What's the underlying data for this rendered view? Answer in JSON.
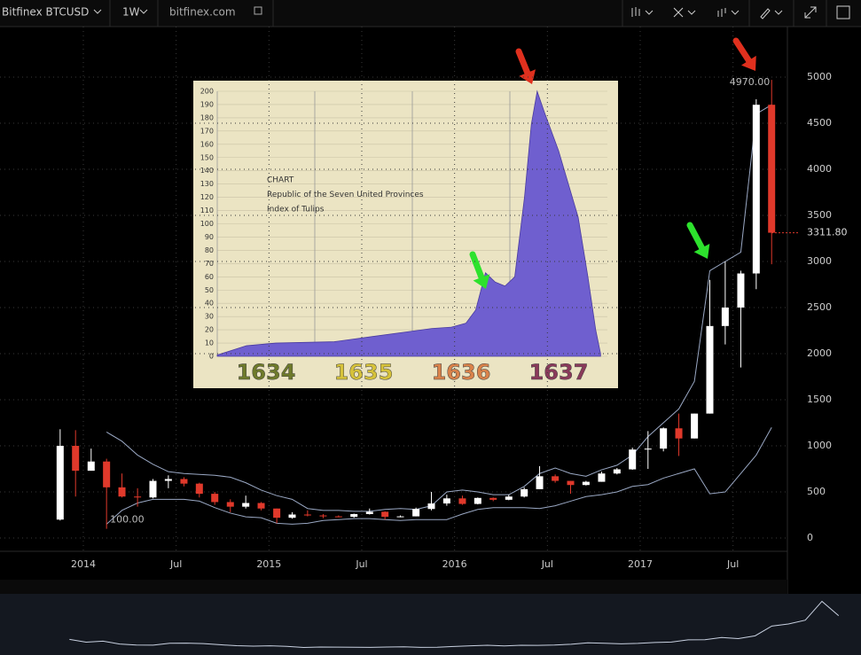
{
  "toolbar": {
    "symbol": "Bitfinex BTCUSD",
    "interval": "1W",
    "site": "bitfinex.com"
  },
  "chart_data": [
    {
      "type": "candlestick",
      "x": [
        2013.875,
        2013.958,
        2014.042,
        2014.125,
        2014.208,
        2014.292,
        2014.375,
        2014.458,
        2014.542,
        2014.625,
        2014.708,
        2014.792,
        2014.875,
        2014.958,
        2015.042,
        2015.125,
        2015.208,
        2015.292,
        2015.375,
        2015.458,
        2015.542,
        2015.625,
        2015.708,
        2015.792,
        2015.875,
        2015.958,
        2016.042,
        2016.125,
        2016.208,
        2016.292,
        2016.375,
        2016.458,
        2016.542,
        2016.625,
        2016.708,
        2016.792,
        2016.875,
        2016.958,
        2017.042,
        2017.125,
        2017.208,
        2017.292,
        2017.375,
        2017.458,
        2017.542,
        2017.625,
        2017.708
      ],
      "open": [
        200,
        1000,
        730,
        830,
        550,
        450,
        440,
        620,
        640,
        590,
        480,
        390,
        340,
        380,
        320,
        220,
        255,
        245,
        235,
        230,
        260,
        285,
        230,
        235,
        315,
        375,
        430,
        370,
        435,
        415,
        450,
        530,
        670,
        620,
        575,
        610,
        700,
        745,
        960,
        970,
        1190,
        1080,
        1350,
        2300,
        2500,
        2870,
        4700
      ],
      "high": [
        1180,
        1170,
        970,
        860,
        700,
        540,
        640,
        680,
        660,
        600,
        500,
        420,
        460,
        390,
        320,
        280,
        300,
        260,
        245,
        265,
        320,
        290,
        245,
        330,
        500,
        470,
        460,
        440,
        440,
        470,
        550,
        780,
        690,
        620,
        620,
        720,
        760,
        980,
        1160,
        1200,
        1350,
        1350,
        2800,
        3000,
        2900,
        4760,
        4970
      ],
      "low": [
        190,
        450,
        730,
        100,
        440,
        340,
        430,
        540,
        560,
        440,
        360,
        280,
        320,
        300,
        160,
        210,
        235,
        215,
        225,
        220,
        255,
        200,
        225,
        235,
        300,
        350,
        360,
        365,
        400,
        410,
        440,
        530,
        600,
        480,
        570,
        610,
        690,
        740,
        750,
        940,
        890,
        1080,
        1350,
        2100,
        1850,
        2700,
        2970
      ],
      "close": [
        1000,
        730,
        830,
        550,
        450,
        440,
        620,
        640,
        590,
        480,
        390,
        340,
        380,
        320,
        220,
        255,
        245,
        235,
        230,
        260,
        285,
        230,
        235,
        315,
        375,
        430,
        370,
        435,
        415,
        450,
        530,
        670,
        620,
        575,
        610,
        700,
        745,
        960,
        970,
        1190,
        1080,
        1350,
        2300,
        2500,
        2870,
        4700,
        3311.8
      ],
      "up_color": "#ffffff",
      "down_color": "#e0392b",
      "bands": [
        {
          "color": "#9aa8c4",
          "values": [
            null,
            null,
            null,
            1150,
            1050,
            900,
            800,
            720,
            700,
            690,
            680,
            660,
            600,
            520,
            460,
            420,
            320,
            300,
            300,
            290,
            290,
            310,
            320,
            310,
            350,
            500,
            520,
            500,
            470,
            470,
            560,
            700,
            760,
            700,
            670,
            740,
            790,
            900,
            1100,
            1250,
            1400,
            1700,
            2900,
            3000,
            3100,
            4600,
            4700
          ]
        },
        {
          "color": "#9aa8c4",
          "values": [
            null,
            null,
            null,
            150,
            300,
            380,
            420,
            420,
            420,
            400,
            330,
            270,
            230,
            220,
            160,
            150,
            160,
            190,
            200,
            210,
            210,
            200,
            190,
            200,
            200,
            200,
            260,
            310,
            330,
            330,
            330,
            320,
            350,
            400,
            450,
            470,
            500,
            560,
            580,
            650,
            700,
            750,
            480,
            500,
            700,
            900,
            1200
          ]
        }
      ],
      "xlim": [
        2013.551,
        2017.793
      ],
      "xticks": [
        {
          "value": 2014,
          "label": "2014"
        },
        {
          "value": 2014.5,
          "label": "Jul"
        },
        {
          "value": 2015,
          "label": "2015"
        },
        {
          "value": 2015.5,
          "label": "Jul"
        },
        {
          "value": 2016,
          "label": "2016"
        },
        {
          "value": 2016.5,
          "label": "Jul"
        },
        {
          "value": 2017,
          "label": "2017"
        },
        {
          "value": 2017.5,
          "label": "Jul"
        }
      ],
      "ylim": [
        -144,
        5548
      ],
      "yticks": [
        0,
        500,
        1000,
        1500,
        2000,
        2500,
        3000,
        3500,
        4000,
        4500,
        5000
      ],
      "grid": true,
      "last_price": {
        "value": 3311.8,
        "label": "3311.80"
      },
      "annotations": [
        {
          "value": 4970,
          "label": "4970.00"
        },
        {
          "value": 100,
          "label": "100.00"
        }
      ]
    },
    {
      "type": "area",
      "title_lines": [
        "CHART",
        "Republic of the Seven United Provinces",
        "Index of Tulips"
      ],
      "x": [
        1634,
        1634.3,
        1634.6,
        1635.2,
        1635.6,
        1636,
        1636.2,
        1636.4,
        1636.55,
        1636.65,
        1636.75,
        1636.85,
        1636.95,
        1637.05,
        1637.15,
        1637.22,
        1637.28,
        1637.35,
        1637.5,
        1637.7,
        1637.8,
        1637.88,
        1637.93
      ],
      "values": [
        1,
        8,
        10,
        11,
        15,
        19,
        21,
        22,
        25,
        35,
        63,
        56,
        53,
        60,
        120,
        175,
        200,
        185,
        155,
        105,
        60,
        20,
        2
      ],
      "color": "#6f5fcf",
      "categories": [
        "1634",
        "1635",
        "1636",
        "1637"
      ],
      "category_colors": [
        "#6e7a2a",
        "#d6c23a",
        "#d9824a",
        "#8a3a5a"
      ],
      "xlim": [
        1634,
        1638
      ],
      "ylim": [
        0,
        200
      ],
      "yticks": [
        0,
        10,
        20,
        30,
        40,
        50,
        60,
        70,
        80,
        90,
        100,
        110,
        120,
        130,
        140,
        150,
        160,
        170,
        180,
        190,
        200
      ],
      "grid": true
    }
  ]
}
